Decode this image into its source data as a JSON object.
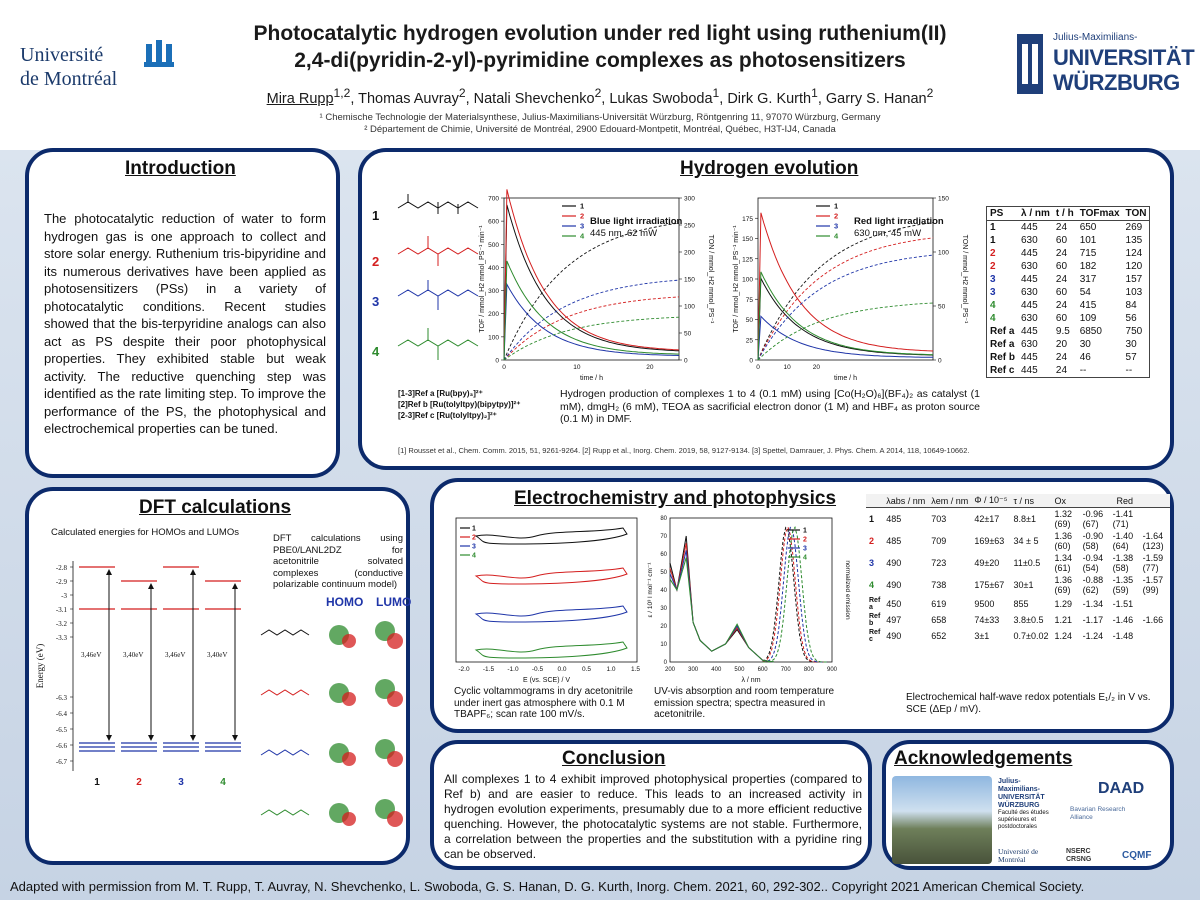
{
  "header": {
    "title_line1": "Photocatalytic hydrogen evolution under red light using ruthenium(II)",
    "title_line2": "2,4-di(pyridin-2-yl)-pyrimidine complexes as photosensitizers",
    "authors": [
      {
        "name": "Mira Rupp",
        "sup": "1,2"
      },
      {
        "name": "Thomas Auvray",
        "sup": "2"
      },
      {
        "name": "Natali Shevchenko",
        "sup": "2"
      },
      {
        "name": "Lukas Swoboda",
        "sup": "1"
      },
      {
        "name": "Dirk G. Kurth",
        "sup": "1"
      },
      {
        "name": "Garry S. Hanan",
        "sup": "2"
      }
    ],
    "affiliation1": "¹ Chemische Technologie der Materialsynthese, Julius-Maximilians-Universität Würzburg, Röntgenring 11, 97070 Würzburg, Germany",
    "affiliation2": "² Département de Chimie, Université de Montréal, 2900 Edouard-Montpetit, Montréal, Québec, H3T-IJ4, Canada",
    "logo_left_line1": "Université",
    "logo_left_line2": "de Montréal",
    "logo_right_line1": "Julius-Maximilians-",
    "logo_right_line2": "UNIVERSITÄT",
    "logo_right_line3": "WÜRZBURG"
  },
  "introduction": {
    "title": "Introduction",
    "text": "The photocatalytic reduction of water to form hydrogen gas is one approach to collect and store solar energy. Ruthenium tris-bipyridine and its numerous derivatives have been applied as photosensitizers (PSs) in a variety of photocatalytic conditions. Recent studies showed that the bis-terpyridine analogs can also act as PS despite their poor photophysical properties. They exhibited stable but weak activity. The reductive quenching step was identified as the rate limiting step. To improve the performance of the PS, the photophysical and electrochemical properties can be tuned."
  },
  "hydrogen": {
    "title": "Hydrogen evolution",
    "complex_labels": [
      "1",
      "2",
      "3",
      "4"
    ],
    "blue_title": "Blue light irradiation",
    "blue_sub": "445 nm, 62 mW",
    "red_title": "Red light irradiation",
    "red_sub": "630 nm, 45 mW",
    "xlabel": "time / h",
    "ylabel_left": "TOF / mmol_H2 mmol_PS⁻¹ min⁻¹",
    "ylabel_right": "TON / mmol_H2 mmol_PS⁻¹",
    "refs_line1": "[1-3]Ref a [Ru(bpy)₃]²⁺",
    "refs_line2": "[2]Ref b [Ru(tolyltpy)(bipytpy)]²⁺",
    "refs_line3": "[2-3]Ref c [Ru(tolyltpy)₂]²⁺",
    "caption": "Hydrogen production of complexes 1 to 4 (0.1 mM) using [Co(H₂O)₆](BF₄)₂ as catalyst (1 mM), dmgH₂ (6 mM), TEOA as sacrificial electron donor (1 M) and HBF₄ as proton source (0.1 M) in DMF.",
    "citations": "[1] Rousset et al., Chem. Comm. 2015, 51, 9261-9264. [2] Rupp et al., Inorg. Chem. 2019, 58, 9127-9134. [3] Spettel, Damrauer, J. Phys. Chem. A 2014, 118, 10649-10662.",
    "table_headers": [
      "PS",
      "λ / nm",
      "t / h",
      "TOFmax",
      "TON"
    ],
    "table_rows": [
      [
        "1",
        "445",
        "24",
        "650",
        "269"
      ],
      [
        "1",
        "630",
        "60",
        "101",
        "135"
      ],
      [
        "2",
        "445",
        "24",
        "715",
        "124"
      ],
      [
        "2",
        "630",
        "60",
        "182",
        "120"
      ],
      [
        "3",
        "445",
        "24",
        "317",
        "157"
      ],
      [
        "3",
        "630",
        "60",
        "54",
        "103"
      ],
      [
        "4",
        "445",
        "24",
        "415",
        "84"
      ],
      [
        "4",
        "630",
        "60",
        "109",
        "56"
      ],
      [
        "Ref a",
        "445",
        "9.5",
        "6850",
        "750"
      ],
      [
        "Ref a",
        "630",
        "20",
        "30",
        "30"
      ],
      [
        "Ref b",
        "445",
        "24",
        "46",
        "57"
      ],
      [
        "Ref c",
        "445",
        "24",
        "--",
        "--"
      ]
    ]
  },
  "dft": {
    "title": "DFT calculations",
    "energies_label": "Calculated energies for HOMOs and LUMOs",
    "method_text": "DFT calculations using PBE0/LANL2DZ for acetonitrile solvated complexes (conductive polarizable continuum model)",
    "homo_label": "HOMO",
    "lumo_label": "LUMO",
    "ylabel": "Energy (eV)",
    "yticks": [
      "-2.8",
      "-2.9",
      "-3",
      "-3.1",
      "-3.2",
      "-3.3",
      "-6.3",
      "-6.4",
      "-6.5",
      "-6.6",
      "-6.7"
    ],
    "gaps": [
      "3,46eV",
      "3,40eV",
      "3,46eV",
      "3,40eV"
    ],
    "complexes": [
      "1",
      "2",
      "3",
      "4"
    ]
  },
  "electro": {
    "title": "Electrochemistry and photophysics",
    "cv_xlabel": "E (vs. SCE) / V",
    "cv_xticks": [
      "-2.0",
      "-1.5",
      "-1.0",
      "-0.5",
      "0.0",
      "0.5",
      "1.0",
      "1.5"
    ],
    "cv_caption": "Cyclic voltammograms in dry acetonitrile under inert gas atmosphere with 0.1 M TBAPF₆; scan rate 100 mV/s.",
    "uv_xlabel": "λ / nm",
    "uv_ylabel_left": "ε / 10³ l mol⁻¹ cm⁻¹",
    "uv_ylabel_right": "normalized emission",
    "uv_xticks": [
      "200",
      "300",
      "400",
      "500",
      "600",
      "700",
      "800",
      "900"
    ],
    "uv_yticks": [
      "0",
      "10",
      "20",
      "30",
      "40",
      "50",
      "60",
      "70",
      "80"
    ],
    "uv_caption": "UV-vis absorption and room temperature emission spectra; spectra measured in acetonitrile.",
    "table_headers": [
      "",
      "λabs / nm",
      "λem / nm",
      "Φ / 10⁻⁵",
      "τ / ns",
      "Ox",
      "Red"
    ],
    "table_rows": [
      [
        "1",
        "485",
        "703",
        "42±17",
        "8.8±1",
        "1.32 (69)",
        "-0.96 (67)",
        "-1.41 (71)",
        ""
      ],
      [
        "2",
        "485",
        "709",
        "169±63",
        "34 ± 5",
        "1.36 (60)",
        "-0.90 (58)",
        "-1.40 (64)",
        "-1.64 (123)"
      ],
      [
        "3",
        "490",
        "723",
        "49±20",
        "11±0.5",
        "1.34 (61)",
        "-0.94 (54)",
        "-1.38 (58)",
        "-1.59 (77)"
      ],
      [
        "4",
        "490",
        "738",
        "175±67",
        "30±1",
        "1.36 (69)",
        "-0.88 (62)",
        "-1.35 (59)",
        "-1.57 (99)"
      ],
      [
        "Ref a",
        "450",
        "619",
        "9500",
        "855",
        "1.29",
        "-1.34",
        "-1.51",
        ""
      ],
      [
        "Ref b",
        "497",
        "658",
        "74±33",
        "3.8±0.5",
        "1.21",
        "-1.17",
        "-1.46",
        "-1.66"
      ],
      [
        "Ref c",
        "490",
        "652",
        "3±1",
        "0.7±0.02",
        "1.24",
        "-1.24",
        "-1.48",
        ""
      ]
    ],
    "table_caption": "Electrochemical half-wave redox potentials E₁/₂ in V vs. SCE (ΔEp / mV)."
  },
  "conclusion": {
    "title": "Conclusion",
    "text": "All complexes 1 to 4 exhibit improved photophysical properties (compared to Ref b) and are easier to reduce. This leads to an increased activity in hydrogen evolution experiments, presumably due to a more efficient reductive quenching. However, the photocatalytic systems are not stable. Furthermore, a correlation between the properties and the substitution with a pyridine ring can be observed."
  },
  "acknowledgements": {
    "title": "Acknowledgements",
    "logos": [
      "Julius-Maximilians-UNIVERSITÄT WÜRZBURG",
      "DAAD",
      "Bavarian Research Alliance",
      "Faculté des études supérieures et postdoctorales",
      "Université de Montréal",
      "NSERC CRSNG",
      "CQMF"
    ]
  },
  "footer": {
    "text": "Adapted with permission from M. T. Rupp, T. Auvray, N. Shevchenko, L. Swoboda, G. S. Hanan, D. G. Kurth, Inorg. Chem. 2021, 60, 292-302.. Copyright 2021 American Chemical Society."
  },
  "colors": {
    "navy": "#0c2a6b",
    "c1": "#111111",
    "c2": "#d41f1f",
    "c3": "#1f35a8",
    "c4": "#2e8b2e"
  }
}
